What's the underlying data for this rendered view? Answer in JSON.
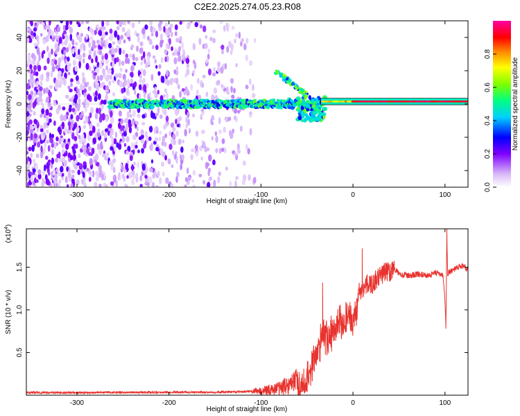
{
  "figure_title": "C2E2.2025.274.05.23.R08",
  "chart_data": [
    {
      "type": "heatmap",
      "title": "C2E2.2025.274.05.23.R08",
      "xlabel": "Height of straight line (km)",
      "ylabel": "Frequency (Hz)",
      "xlim": [
        -355,
        125
      ],
      "ylim": [
        -50,
        50
      ],
      "xticks": [
        -300,
        -200,
        -100,
        0,
        100
      ],
      "yticks": [
        -40,
        -20,
        0,
        20,
        40
      ],
      "colorbar": {
        "label": "Normalized spectral amplitude",
        "range": [
          0,
          1
        ],
        "ticks": [
          0.0,
          0.2,
          0.4,
          0.6,
          0.8
        ],
        "tick_labels": [
          "0.0",
          "0.2",
          "0.4",
          "0.6",
          "0.8"
        ],
        "colormap": [
          "#ffffff",
          "#d8b8f8",
          "#8000ff",
          "#0000ff",
          "#00d0ff",
          "#00ff80",
          "#80ff00",
          "#ffff00",
          "#ff8000",
          "#ff0000",
          "#ff00a0"
        ]
      },
      "features": [
        {
          "name": "noise region",
          "x_range": [
            -355,
            -110
          ],
          "frequency_range": [
            -50,
            50
          ],
          "amplitude": 0.1
        },
        {
          "name": "primary echo band",
          "x_range": [
            -265,
            -30
          ],
          "frequency_center": 0,
          "amplitude": 0.35
        },
        {
          "name": "secondary echo branch",
          "x_range": [
            -85,
            -50
          ],
          "frequency_range": [
            5,
            20
          ],
          "amplitude": 0.55
        },
        {
          "name": "strong stable trace",
          "x_range": [
            -35,
            125
          ],
          "frequency_center": 1,
          "amplitude": 0.95
        }
      ]
    },
    {
      "type": "line",
      "series_name": "SNR",
      "color": "#e8322d",
      "xlabel": "Height of straight line (km)",
      "ylabel": "SNR (10 * v/v)",
      "scale_label_base": "(x10",
      "scale_label_exp": "4",
      "scale_label_close": ")",
      "xlim": [
        -355,
        125
      ],
      "ylim": [
        0,
        1.95
      ],
      "xticks": [
        -300,
        -200,
        -100,
        0,
        100
      ],
      "yticks": [
        0.5,
        1.0,
        1.5
      ],
      "ytick_labels": [
        "0.5",
        "1.0",
        "1.5"
      ],
      "x": [
        -355,
        -300,
        -200,
        -150,
        -120,
        -100,
        -90,
        -80,
        -70,
        -60,
        -50,
        -45,
        -40,
        -35,
        -32,
        -30,
        -25,
        -20,
        -15,
        -10,
        -5,
        -2,
        0,
        2,
        5,
        10,
        15,
        20,
        25,
        30,
        35,
        40,
        45,
        50,
        60,
        70,
        80,
        90,
        95,
        98,
        100,
        101,
        102,
        103,
        105,
        110,
        115,
        120,
        125
      ],
      "y": [
        0.03,
        0.03,
        0.035,
        0.035,
        0.04,
        0.05,
        0.06,
        0.08,
        0.12,
        0.2,
        0.35,
        0.5,
        0.65,
        0.8,
        0.9,
        0.85,
        0.9,
        0.95,
        1.0,
        1.05,
        1.1,
        1.05,
        1.0,
        1.15,
        1.2,
        1.25,
        1.3,
        1.3,
        1.35,
        1.4,
        1.45,
        1.45,
        1.48,
        1.42,
        1.4,
        1.42,
        1.4,
        1.43,
        1.42,
        1.4,
        1.1,
        0.78,
        1.9,
        1.4,
        1.45,
        1.47,
        1.5,
        1.52,
        1.47
      ],
      "spikes": [
        {
          "x": -33,
          "y": 1.32
        },
        {
          "x": 10,
          "y": 1.72
        },
        {
          "x": 101,
          "y": 0.78
        },
        {
          "x": 102,
          "y": 1.95
        }
      ]
    }
  ]
}
